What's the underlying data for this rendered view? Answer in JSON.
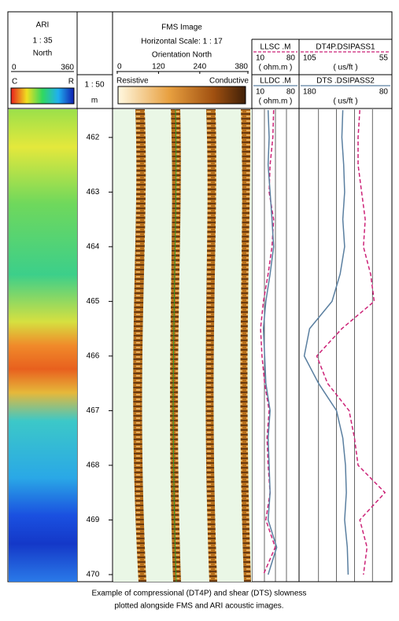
{
  "ari": {
    "title": "ARI",
    "scale": "1 : 35",
    "orientation": "North",
    "range": [
      0,
      360
    ],
    "colorbar": [
      "C",
      "R"
    ]
  },
  "depth": {
    "scale": "1 : 50",
    "unit": "m",
    "ylim": [
      461.47,
      470.13
    ],
    "ticks": [
      462,
      463,
      464,
      465,
      466,
      467,
      468,
      469,
      470
    ]
  },
  "fms": {
    "title": "FMS Image",
    "horizontal_scale": "Horizontal Scale: 1 : 17",
    "orientation": "Orientation North",
    "ticks": [
      0,
      120,
      240,
      380
    ],
    "colorbar": [
      "Resistive",
      "Conductive"
    ]
  },
  "depths": [
    461.5,
    462,
    462.5,
    463,
    463.5,
    464,
    464.5,
    465,
    465.5,
    466,
    466.5,
    467,
    467.5,
    468,
    468.5,
    469,
    469.5,
    470
  ],
  "curves": [
    {
      "name": "LLSC .M",
      "unit": "( ohm.m )",
      "xlim": [
        10,
        80
      ],
      "scale": "log",
      "color": "#cc2277",
      "dashed": true,
      "values": [
        26,
        25,
        22,
        21,
        26,
        24,
        20,
        16,
        14,
        15,
        17,
        21,
        19,
        20,
        22,
        18,
        28,
        16
      ]
    },
    {
      "name": "LLDC .M",
      "unit": "( ohm.m )",
      "xlim": [
        10,
        80
      ],
      "scale": "log",
      "color": "#5a7fa0",
      "dashed": false,
      "values": [
        20,
        21,
        20,
        22,
        24,
        26,
        22,
        18,
        16,
        17,
        18,
        22,
        20,
        21,
        22,
        20,
        30,
        20
      ]
    },
    {
      "name": "DT4P.DSIPASS1",
      "unit": "( us/ft )",
      "xlim": [
        105,
        55
      ],
      "scale": "linear",
      "color": "#cc2277",
      "dashed": true,
      "values": [
        72,
        73,
        73,
        71,
        69,
        70,
        66,
        64,
        82,
        96,
        90,
        78,
        75,
        73,
        58,
        72,
        68,
        70
      ]
    },
    {
      "name": "DTS .DSIPASS2",
      "unit": "( us/ft )",
      "xlim": [
        180,
        80
      ],
      "scale": "linear",
      "color": "#5a7fa0",
      "dashed": false,
      "values": [
        133,
        134,
        132,
        131,
        133,
        131,
        136,
        145,
        170,
        176,
        160,
        140,
        133,
        130,
        129,
        131,
        128,
        127
      ]
    }
  ],
  "caption": [
    "Example of compressional (DT4P) and shear (DTS) slowness",
    "plotted alongside FMS and ARI acoustic images."
  ]
}
